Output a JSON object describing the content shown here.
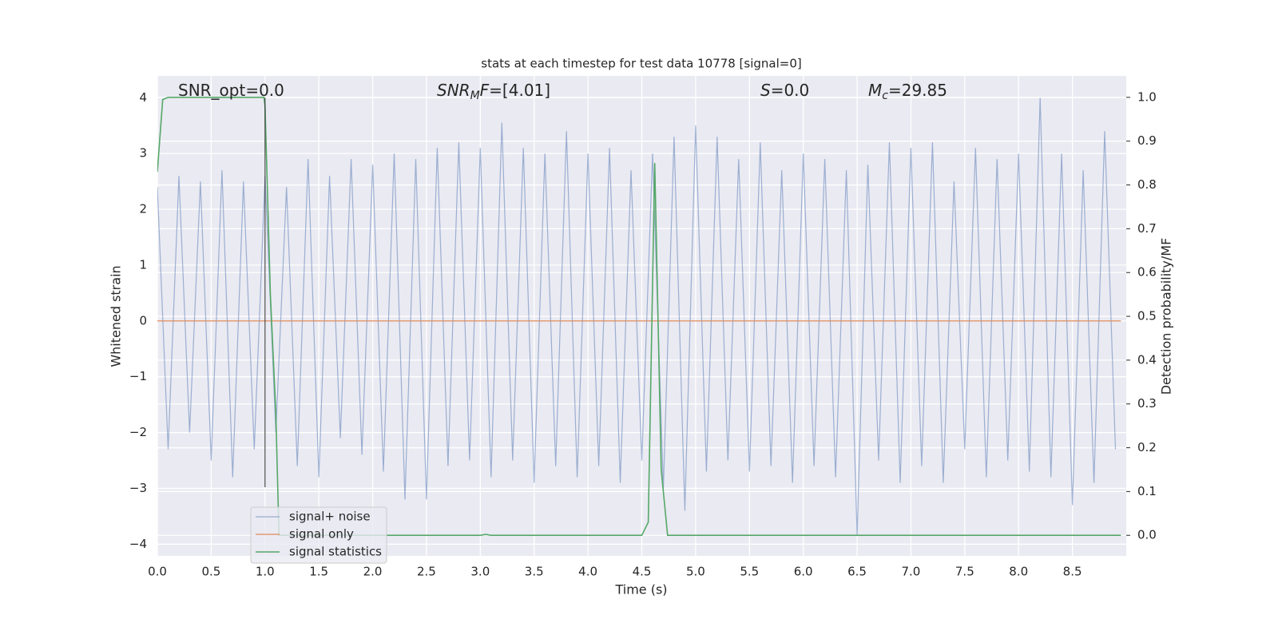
{
  "chart_data": {
    "type": "line",
    "title": "stats at each timestep for test data 10778 [signal=0]",
    "xlabel": "Time (s)",
    "ylabel": "Whitened strain",
    "y2label": "Detection probability/MF",
    "annotations": [
      {
        "main": "SNR_opt=0.0",
        "math": false
      },
      {
        "main": "SNR",
        "sub": "M",
        "tail": "F=[4.01]",
        "math": true
      },
      {
        "main": "S",
        "tail": "=0.0",
        "math": true
      },
      {
        "main": "M",
        "sub": "c",
        "tail": "=29.85",
        "math": true
      }
    ],
    "xlim": [
      0,
      9.0
    ],
    "ylim": [
      -4.21,
      4.39
    ],
    "y2lim": [
      -0.047,
      1.049
    ],
    "xticks": [
      {
        "value": 0,
        "label": "0.0"
      },
      0.5,
      {
        "value": 1,
        "label": "1.0"
      },
      1.5,
      {
        "value": 2,
        "label": "2.0"
      },
      2.5,
      {
        "value": 3,
        "label": "3.0"
      },
      3.5,
      {
        "value": 4,
        "label": "4.0"
      },
      4.5,
      {
        "value": 5,
        "label": "5.0"
      },
      5.5,
      {
        "value": 6,
        "label": "6.0"
      },
      6.5,
      {
        "value": 7,
        "label": "7.0"
      },
      7.5,
      {
        "value": 8,
        "label": "8.0"
      },
      8.5
    ],
    "yticks": [
      {
        "value": -4,
        "label": "−4"
      },
      {
        "value": -3,
        "label": "−3"
      },
      {
        "value": -2,
        "label": "−2"
      },
      {
        "value": -1,
        "label": "−1"
      },
      0,
      1,
      2,
      3,
      4
    ],
    "y2ticks": [
      {
        "value": 0,
        "label": "0.0"
      },
      0.1,
      0.2,
      0.3,
      0.4,
      0.5,
      0.6,
      0.7,
      0.8,
      0.9,
      {
        "value": 1,
        "label": "1.0"
      }
    ],
    "grid": true,
    "vline_x": 1.0,
    "series": [
      {
        "name": "signal+ noise",
        "color": "#4c72b0",
        "x": [
          0.0,
          0.1,
          0.2,
          0.3,
          0.4,
          0.5,
          0.6,
          0.7,
          0.8,
          0.9,
          1.0,
          1.1,
          1.2,
          1.3,
          1.4,
          1.5,
          1.6,
          1.7,
          1.8,
          1.9,
          2.0,
          2.1,
          2.2,
          2.3,
          2.4,
          2.5,
          2.6,
          2.7,
          2.8,
          2.9,
          3.0,
          3.1,
          3.2,
          3.3,
          3.4,
          3.5,
          3.6,
          3.7,
          3.8,
          3.9,
          4.0,
          4.1,
          4.2,
          4.3,
          4.4,
          4.5,
          4.6,
          4.7,
          4.8,
          4.9,
          5.0,
          5.1,
          5.2,
          5.3,
          5.4,
          5.5,
          5.6,
          5.7,
          5.8,
          5.9,
          6.0,
          6.1,
          6.2,
          6.3,
          6.4,
          6.5,
          6.6,
          6.7,
          6.8,
          6.9,
          7.0,
          7.1,
          7.2,
          7.3,
          7.4,
          7.5,
          7.6,
          7.7,
          7.8,
          7.9,
          8.0,
          8.1,
          8.2,
          8.3,
          8.4,
          8.5,
          8.6,
          8.7,
          8.8,
          8.9
        ],
        "values": [
          2.4,
          -2.3,
          2.6,
          -2.0,
          2.5,
          -2.5,
          2.7,
          -2.8,
          2.5,
          -2.3,
          2.6,
          -2.0,
          2.4,
          -2.6,
          2.9,
          -2.8,
          2.6,
          -2.1,
          2.9,
          -2.4,
          2.8,
          -2.7,
          3.0,
          -3.2,
          2.9,
          -3.2,
          3.1,
          -2.6,
          3.2,
          -2.5,
          3.1,
          -2.8,
          3.55,
          -2.5,
          3.1,
          -2.9,
          3.0,
          -2.6,
          3.4,
          -2.8,
          3.0,
          -2.6,
          3.1,
          -2.9,
          2.7,
          -2.5,
          3.0,
          -3.0,
          3.3,
          -3.4,
          3.5,
          -2.7,
          3.3,
          -2.5,
          2.9,
          -2.7,
          3.2,
          -2.6,
          2.7,
          -2.9,
          3.0,
          -2.6,
          2.9,
          -2.8,
          2.7,
          -3.85,
          2.8,
          -2.5,
          3.2,
          -2.9,
          3.1,
          -2.6,
          3.2,
          -2.9,
          2.5,
          -2.3,
          3.1,
          -2.8,
          2.9,
          -2.5,
          3.0,
          -2.7,
          4.0,
          -2.8,
          3.0,
          -3.3,
          2.7,
          -2.9,
          3.4,
          -2.3
        ]
      },
      {
        "name": "signal only",
        "color": "#dd8452",
        "x": [
          0.0,
          8.95
        ],
        "values": [
          0,
          0
        ]
      },
      {
        "name": "signal statistics",
        "color": "#55a868",
        "axis": "y2",
        "x": [
          0,
          0.05,
          0.1,
          0.15,
          0.5,
          0.99,
          1.0,
          1.05,
          1.1,
          1.13,
          3.0,
          3.05,
          3.1,
          4.5,
          4.56,
          4.62,
          4.68,
          4.74,
          8.95
        ],
        "values": [
          0.83,
          0.995,
          1.0,
          1.0,
          1.0,
          1.0,
          0.98,
          0.55,
          0.28,
          0.0,
          0.0,
          0.002,
          0.0,
          0.0,
          0.03,
          0.85,
          0.15,
          0.0,
          0.0
        ]
      }
    ]
  }
}
